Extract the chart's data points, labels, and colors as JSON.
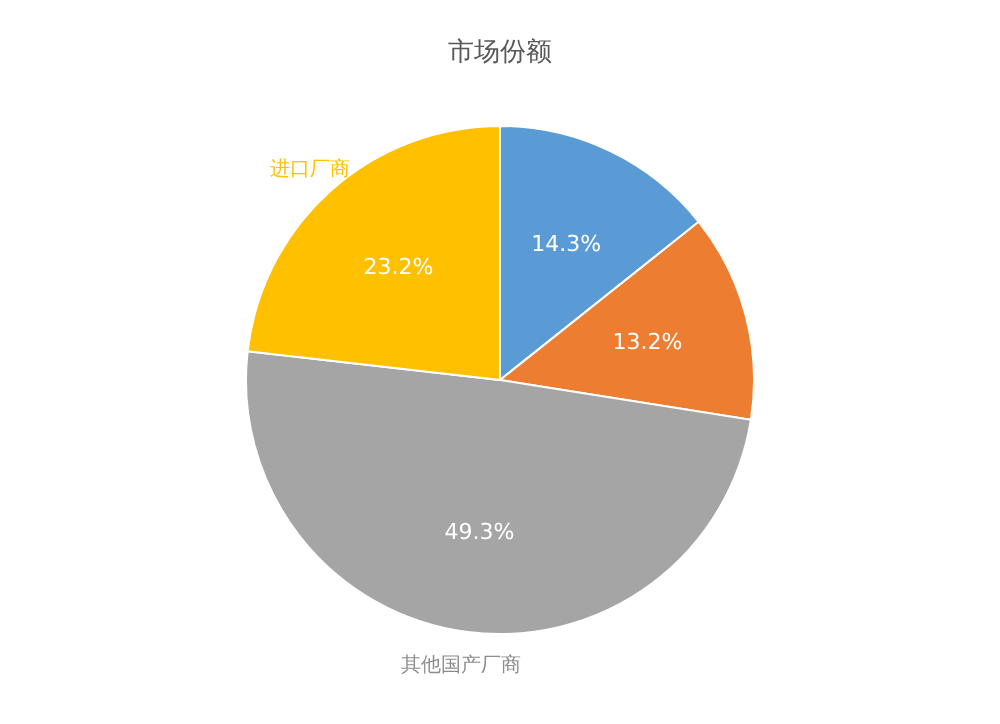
{
  "chart_data": {
    "type": "pie",
    "title": "市场份额",
    "categories": [
      null,
      null,
      "其他国产厂商",
      "进口厂商"
    ],
    "values": [
      14.3,
      13.2,
      49.3,
      23.2
    ],
    "value_labels": [
      "14.3%",
      "13.2%",
      "49.3%",
      "23.2%"
    ],
    "colors": [
      "#5b9bd5",
      "#ed7d31",
      "#a5a5a5",
      "#ffc000"
    ]
  }
}
